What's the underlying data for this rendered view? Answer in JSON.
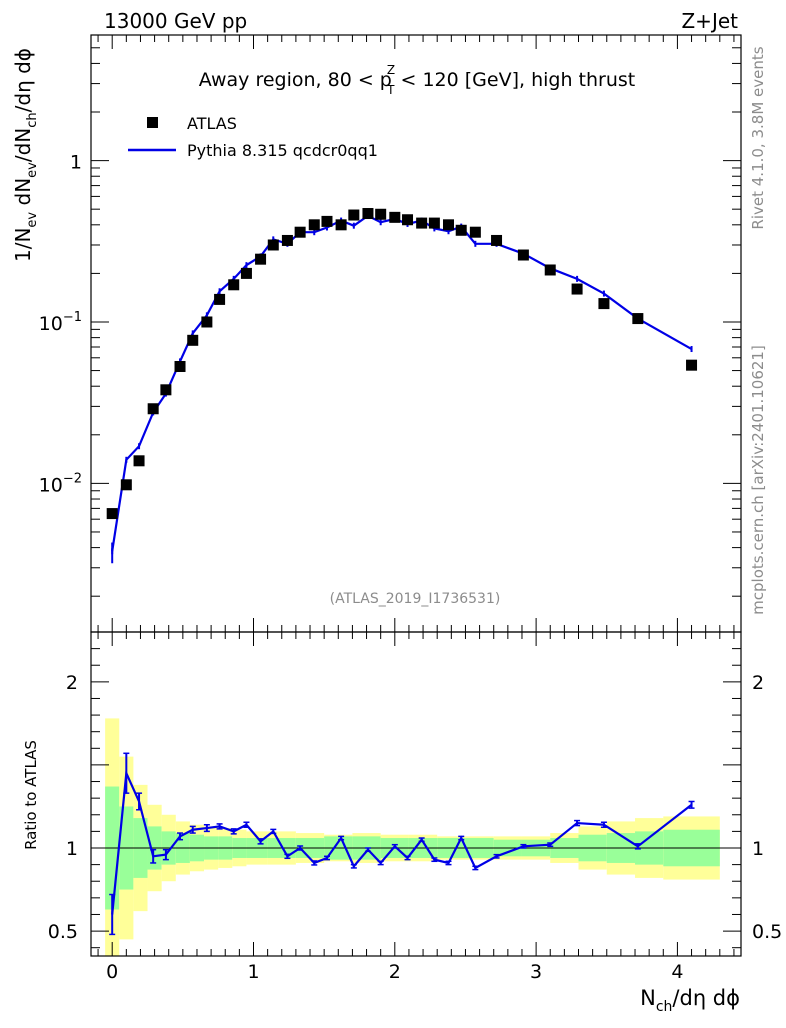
{
  "header": {
    "energy_label": "13000 GeV pp",
    "process_label": "Z+Jet"
  },
  "side_text": {
    "rivet": "Rivet 4.1.0,  3.8M events",
    "mcplots": "mcplots.cern.ch [arXiv:2401.10621]"
  },
  "chart_data": {
    "type": "scatter",
    "title_parts": [
      "Away region, 80 < p",
      "Z",
      "T",
      " < 120 [GeV], high thrust"
    ],
    "analysis_id": "(ATLAS_2019_I1736531)",
    "ylabel_parts": [
      "1/N",
      "ev",
      " dN",
      "ev",
      "/dN",
      "ch",
      "/dη dϕ"
    ],
    "xlabel_parts": [
      "N",
      "ch",
      "/dη dϕ"
    ],
    "ratio_ylabel": "Ratio to ATLAS",
    "x_range": [
      -0.15,
      4.45
    ],
    "y_range_log": [
      0.0012,
      6.0
    ],
    "ratio_range": [
      0.35,
      2.3
    ],
    "x_ticks": [
      {
        "v": 0,
        "label": "0"
      },
      {
        "v": 1,
        "label": "1"
      },
      {
        "v": 2,
        "label": "2"
      },
      {
        "v": 3,
        "label": "3"
      },
      {
        "v": 4,
        "label": "4"
      }
    ],
    "y_ticks": [
      {
        "v": 1,
        "base": "1",
        "exp": ""
      },
      {
        "v": 0.1,
        "base": "10",
        "exp": "−1"
      },
      {
        "v": 0.01,
        "base": "10",
        "exp": "−2"
      }
    ],
    "ratio_ticks": [
      {
        "v": 2,
        "label": "2"
      },
      {
        "v": 1,
        "label": "1"
      },
      {
        "v": 0.5,
        "label": "0.5"
      }
    ],
    "legend": [
      {
        "name": "ATLAS",
        "style": "marker"
      },
      {
        "name": "Pythia 8.315 qcdcr0qq1",
        "style": "line"
      }
    ],
    "atlas": {
      "x": [
        0.0,
        0.1,
        0.19,
        0.29,
        0.38,
        0.48,
        0.57,
        0.67,
        0.76,
        0.86,
        0.95,
        1.05,
        1.14,
        1.24,
        1.33,
        1.43,
        1.52,
        1.62,
        1.71,
        1.81,
        1.9,
        2.0,
        2.09,
        2.19,
        2.28,
        2.38,
        2.47,
        2.57,
        2.72,
        2.91,
        3.1,
        3.29,
        3.48,
        3.72,
        4.1
      ],
      "y": [
        0.0065,
        0.0098,
        0.0138,
        0.029,
        0.038,
        0.053,
        0.077,
        0.1,
        0.138,
        0.17,
        0.2,
        0.245,
        0.3,
        0.32,
        0.36,
        0.4,
        0.42,
        0.4,
        0.46,
        0.47,
        0.465,
        0.445,
        0.43,
        0.41,
        0.41,
        0.4,
        0.37,
        0.36,
        0.32,
        0.26,
        0.21,
        0.16,
        0.13,
        0.105,
        0.054
      ]
    },
    "pythia": {
      "y": [
        0.0038,
        0.014,
        0.017,
        0.0275,
        0.036,
        0.057,
        0.085,
        0.11,
        0.155,
        0.185,
        0.225,
        0.255,
        0.325,
        0.305,
        0.36,
        0.36,
        0.385,
        0.425,
        0.395,
        0.455,
        0.415,
        0.435,
        0.405,
        0.425,
        0.38,
        0.365,
        0.39,
        0.305,
        0.305,
        0.265,
        0.215,
        0.185,
        0.15,
        0.105,
        0.068
      ],
      "ratio": [
        0.6,
        1.45,
        1.28,
        0.95,
        0.96,
        1.07,
        1.11,
        1.12,
        1.13,
        1.1,
        1.14,
        1.04,
        1.1,
        0.95,
        1.0,
        0.91,
        0.94,
        1.06,
        0.89,
        0.99,
        0.91,
        1.01,
        0.94,
        1.05,
        0.93,
        0.91,
        1.06,
        0.88,
        0.95,
        1.01,
        1.02,
        1.15,
        1.14,
        1.01,
        1.26
      ],
      "ratio_err": [
        0.12,
        0.12,
        0.05,
        0.04,
        0.03,
        0.02,
        0.02,
        0.02,
        0.015,
        0.015,
        0.015,
        0.015,
        0.012,
        0.012,
        0.012,
        0.012,
        0.01,
        0.01,
        0.01,
        0.01,
        0.01,
        0.01,
        0.01,
        0.01,
        0.01,
        0.01,
        0.01,
        0.01,
        0.01,
        0.01,
        0.01,
        0.015,
        0.015,
        0.015,
        0.02
      ]
    },
    "bands": {
      "edges": [
        -0.05,
        0.05,
        0.15,
        0.25,
        0.35,
        0.45,
        0.55,
        0.65,
        0.75,
        0.85,
        0.95,
        1.1,
        1.3,
        1.5,
        1.7,
        1.9,
        2.1,
        2.3,
        2.5,
        2.7,
        2.9,
        3.1,
        3.3,
        3.5,
        3.7,
        3.9,
        4.3
      ],
      "green": [
        0.37,
        0.25,
        0.18,
        0.13,
        0.1,
        0.09,
        0.08,
        0.07,
        0.07,
        0.06,
        0.06,
        0.06,
        0.06,
        0.07,
        0.07,
        0.06,
        0.06,
        0.06,
        0.06,
        0.05,
        0.05,
        0.06,
        0.08,
        0.09,
        0.1,
        0.11
      ],
      "yellow": [
        0.78,
        0.55,
        0.38,
        0.26,
        0.2,
        0.16,
        0.14,
        0.13,
        0.12,
        0.11,
        0.1,
        0.1,
        0.09,
        0.08,
        0.09,
        0.08,
        0.08,
        0.07,
        0.07,
        0.07,
        0.07,
        0.09,
        0.13,
        0.16,
        0.18,
        0.19
      ]
    }
  }
}
